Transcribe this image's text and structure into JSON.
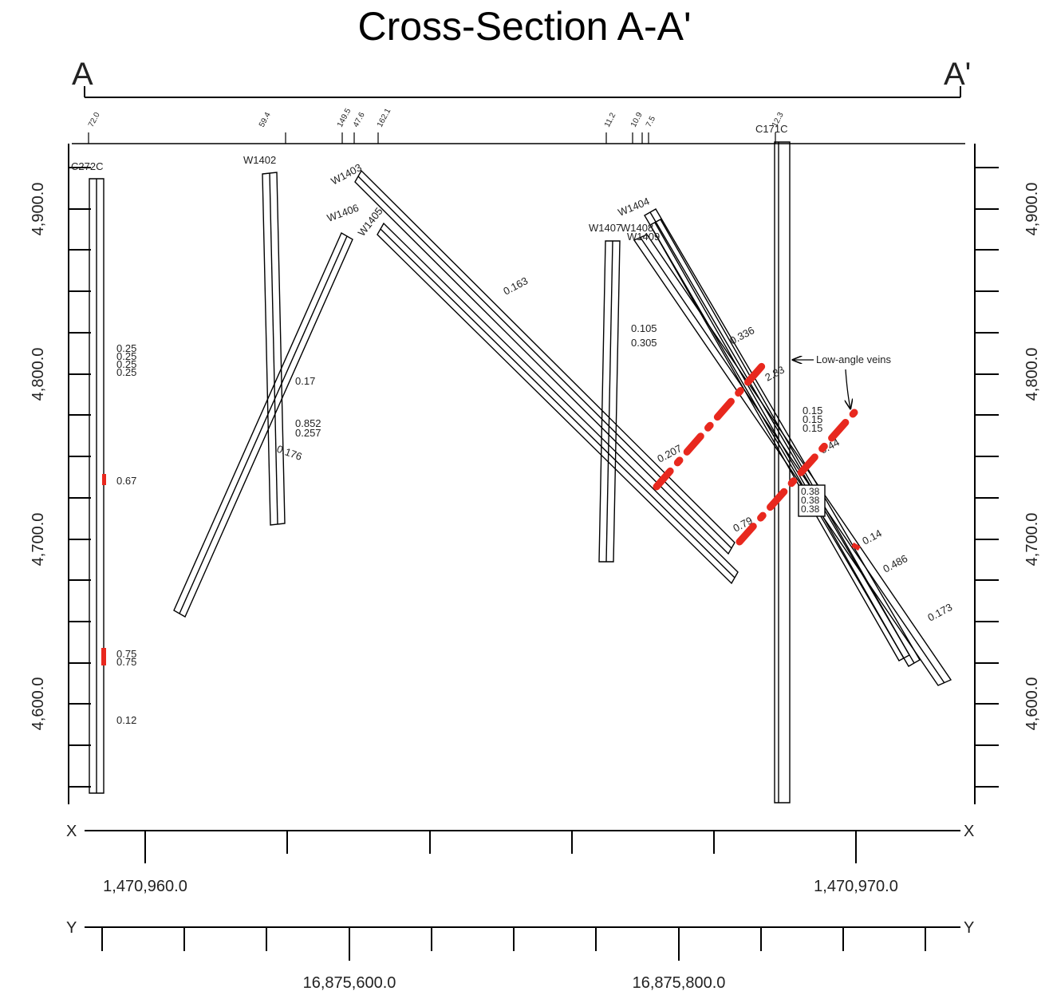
{
  "title": "Cross-Section A-A'",
  "section_ends": {
    "start": "A",
    "end": "A'"
  },
  "elevation_axis": {
    "labels": [
      "4,900.0",
      "4,800.0",
      "4,700.0",
      "4,600.0"
    ]
  },
  "x_axis": {
    "letter": "X",
    "labels": [
      "1,470,960.0",
      "1,470,970.0"
    ]
  },
  "y_axis": {
    "letter": "Y",
    "labels": [
      "16,875,600.0",
      "16,875,800.0"
    ]
  },
  "top_markers": [
    "72.0",
    "59.4",
    "149.5",
    "47.6",
    "162.1",
    "11.2",
    "10.9",
    "7.5",
    "12.3"
  ],
  "drillholes": [
    {
      "name": "C272C",
      "assays": [
        "0.25",
        "0.25",
        "0.25",
        "0.25",
        "0.67",
        "0.75",
        "0.75",
        "0.12"
      ]
    },
    {
      "name": "W1402",
      "assays": [
        "0.17",
        "0.852",
        "0.257",
        "0.176"
      ]
    },
    {
      "name": "W1403",
      "assays": []
    },
    {
      "name": "W1406",
      "assays": []
    },
    {
      "name": "W1405",
      "assays": [
        "0.163"
      ]
    },
    {
      "name": "W1407",
      "assays": [
        "0.105",
        "0.305"
      ]
    },
    {
      "name": "W1404",
      "assays": []
    },
    {
      "name": "W1408",
      "assays": [
        "0.336",
        "2.83",
        "0.44",
        "0.14",
        "0.486",
        "0.173",
        "0.207",
        "0.79"
      ]
    },
    {
      "name": "W1409",
      "assays": []
    },
    {
      "name": "C171C",
      "assays": [
        "0.15",
        "0.15",
        "0.15",
        "0.38",
        "0.38",
        "0.38"
      ]
    }
  ],
  "annotation": "Low-angle veins",
  "colors": {
    "vein": "#e8281e",
    "line": "#000000"
  }
}
